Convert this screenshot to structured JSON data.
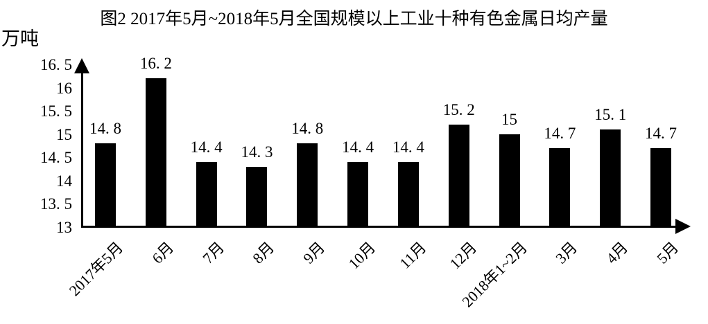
{
  "chart": {
    "title": "图2 2017年5月~2018年5月全国规模以上工业十种有色金属日均产量",
    "unit_label": "万吨"
  },
  "chart_data": {
    "type": "bar",
    "title": "图2 2017年5月~2018年5月全国规模以上工业十种有色金属日均产量",
    "xlabel": "",
    "ylabel": "万吨",
    "categories": [
      "2017年5月",
      "6月",
      "7月",
      "8月",
      "9月",
      "10月",
      "11月",
      "12月",
      "2018年1~2月",
      "3月",
      "4月",
      "5月"
    ],
    "values": [
      14.8,
      16.2,
      14.4,
      14.3,
      14.8,
      14.4,
      14.4,
      15.2,
      15,
      14.7,
      15.1,
      14.7
    ],
    "value_labels": [
      "14. 8",
      "16. 2",
      "14. 4",
      "14. 3",
      "14. 8",
      "14. 4",
      "14. 4",
      "15. 2",
      "15",
      "14. 7",
      "15. 1",
      "14. 7"
    ],
    "ylim": [
      13,
      16.5
    ],
    "yticks": [
      13,
      13.5,
      14,
      14.5,
      15,
      15.5,
      16,
      16.5
    ],
    "ytick_labels": [
      "13",
      "13. 5",
      "14",
      "14. 5",
      "15",
      "15. 5",
      "16",
      "16. 5"
    ],
    "bar_color": "#000000",
    "text_color": "#000000",
    "background_color": "#ffffff",
    "grid": false,
    "legend": null,
    "x_tick_rotation_deg": 45
  }
}
